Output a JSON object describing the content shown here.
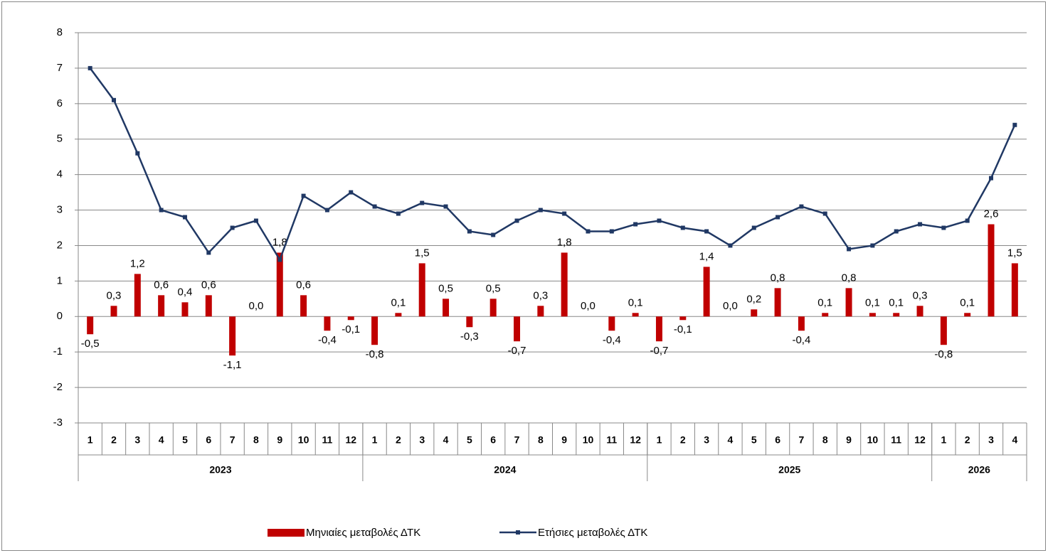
{
  "chart_data": {
    "type": "bar-line",
    "groups": [
      {
        "label": "2023",
        "categories": [
          "1",
          "2",
          "3",
          "4",
          "5",
          "6",
          "7",
          "8",
          "9",
          "10",
          "11",
          "12"
        ]
      },
      {
        "label": "2024",
        "categories": [
          "1",
          "2",
          "3",
          "4",
          "5",
          "6",
          "7",
          "8",
          "9",
          "10",
          "11",
          "12"
        ]
      },
      {
        "label": "2025",
        "categories": [
          "1",
          "2",
          "3",
          "4",
          "5",
          "6",
          "7",
          "8",
          "9",
          "10",
          "11",
          "12"
        ]
      },
      {
        "label": "2026",
        "categories": [
          "1",
          "2",
          "3",
          "4"
        ]
      }
    ],
    "series": [
      {
        "name": "Μηνιαίες μεταβολές ΔΤΚ",
        "type": "bar",
        "color": "#c00000",
        "values": [
          -0.5,
          0.3,
          1.2,
          0.6,
          0.4,
          0.6,
          -1.1,
          0.0,
          1.8,
          0.6,
          -0.4,
          -0.1,
          -0.8,
          0.1,
          1.5,
          0.5,
          -0.3,
          0.5,
          -0.7,
          0.3,
          1.8,
          0.0,
          -0.4,
          0.1,
          -0.7,
          -0.1,
          1.4,
          0.0,
          0.2,
          0.8,
          -0.4,
          0.1,
          0.8,
          0.1,
          0.1,
          0.3,
          -0.8,
          0.1,
          2.6,
          1.5
        ],
        "value_labels": [
          "-0,5",
          "0,3",
          "1,2",
          "0,6",
          "0,4",
          "0,6",
          "-1,1",
          "0,0",
          "1,8",
          "0,6",
          "-0,4",
          "-0,1",
          "-0,8",
          "0,1",
          "1,5",
          "0,5",
          "-0,3",
          "0,5",
          "-0,7",
          "0,3",
          "1,8",
          "0,0",
          "-0,4",
          "0,1",
          "-0,7",
          "-0,1",
          "1,4",
          "0,0",
          "0,2",
          "0,8",
          "-0,4",
          "0,1",
          "0,8",
          "0,1",
          "0,1",
          "0,3",
          "-0,8",
          "0,1",
          "2,6",
          "1,5"
        ]
      },
      {
        "name": "Ετήσιες μεταβολές ΔΤΚ",
        "type": "line",
        "color": "#203864",
        "values": [
          7.0,
          6.1,
          4.6,
          3.0,
          2.8,
          1.8,
          2.5,
          2.7,
          1.6,
          3.4,
          3.0,
          3.5,
          3.1,
          2.9,
          3.2,
          3.1,
          2.4,
          2.3,
          2.7,
          3.0,
          2.9,
          2.4,
          2.4,
          2.6,
          2.7,
          2.5,
          2.4,
          2.0,
          2.5,
          2.8,
          3.1,
          2.9,
          1.9,
          2.0,
          2.4,
          2.6,
          2.5,
          2.7,
          3.9,
          5.4
        ]
      }
    ],
    "ylim": [
      -3,
      8
    ],
    "yticks": [
      -3,
      -2,
      -1,
      0,
      1,
      2,
      3,
      4,
      5,
      6,
      7,
      8
    ],
    "grid": true,
    "legend": "bottom"
  }
}
